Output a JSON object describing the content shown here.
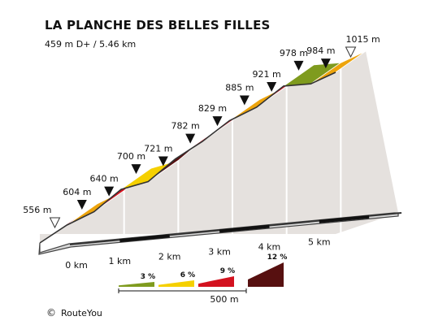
{
  "header": {
    "title": "LA PLANCHE DES BELLES FILLES",
    "subtitle": "459 m D+ / 5.46 km"
  },
  "footer": {
    "copyright_symbol": "©",
    "brand": "RouteYou"
  },
  "colors": {
    "grade_3": "#7f9b1e",
    "grade_6": "#f5d000",
    "grade_9_light": "#eda40c",
    "grade_9": "#d3121f",
    "grade_12": "#571010",
    "side_wall": "#e5e1de",
    "front_face": "#d8d8d8"
  },
  "chart_data": {
    "type": "area",
    "title": "LA PLANCHE DES BELLES FILLES",
    "subtitle": "459 m D+ / 5.46 km",
    "xlabel": "",
    "ylabel": "",
    "x_unit": "km",
    "y_unit": "m",
    "grid": false,
    "total_distance_km": 5.46,
    "elevation_gain_m": 459,
    "km_ticks": [
      "0 km",
      "1 km",
      "2 km",
      "3 km",
      "4 km",
      "5 km"
    ],
    "points": [
      {
        "km": 0.0,
        "elev": 556,
        "label": "556 m",
        "marker": "start"
      },
      {
        "km": 0.5,
        "elev": 604,
        "label": "604 m",
        "marker": "km"
      },
      {
        "km": 1.0,
        "elev": 640,
        "label": "640 m",
        "marker": "km"
      },
      {
        "km": 1.5,
        "elev": 700,
        "label": "700 m",
        "marker": "km"
      },
      {
        "km": 2.0,
        "elev": 721,
        "label": "721 m",
        "marker": "km"
      },
      {
        "km": 2.5,
        "elev": 782,
        "label": "782 m",
        "marker": "km"
      },
      {
        "km": 3.0,
        "elev": 829,
        "label": "829 m",
        "marker": "km"
      },
      {
        "km": 3.5,
        "elev": 885,
        "label": "885 m",
        "marker": "km"
      },
      {
        "km": 4.0,
        "elev": 921,
        "label": "921 m",
        "marker": "km"
      },
      {
        "km": 4.5,
        "elev": 978,
        "label": "978 m",
        "marker": "km"
      },
      {
        "km": 5.0,
        "elev": 984,
        "label": "984 m",
        "marker": "km"
      },
      {
        "km": 5.46,
        "elev": 1015,
        "label": "1015 m",
        "marker": "finish"
      }
    ],
    "segment_colors": [
      "#d3121f",
      "#eda40c",
      "#d3121f",
      "#f5d000",
      "#571010",
      "#d3121f",
      "#d3121f",
      "#eda40c",
      "#d3121f",
      "#7f9b1e",
      "#eda40c"
    ],
    "legend": {
      "items": [
        {
          "label": "3 %",
          "color": "#7f9b1e"
        },
        {
          "label": "6 %",
          "color": "#f5d000"
        },
        {
          "label": "9 %",
          "color": "#d3121f"
        },
        {
          "label": "12 %",
          "color": "#571010"
        }
      ],
      "scale_label": "500 m"
    }
  }
}
